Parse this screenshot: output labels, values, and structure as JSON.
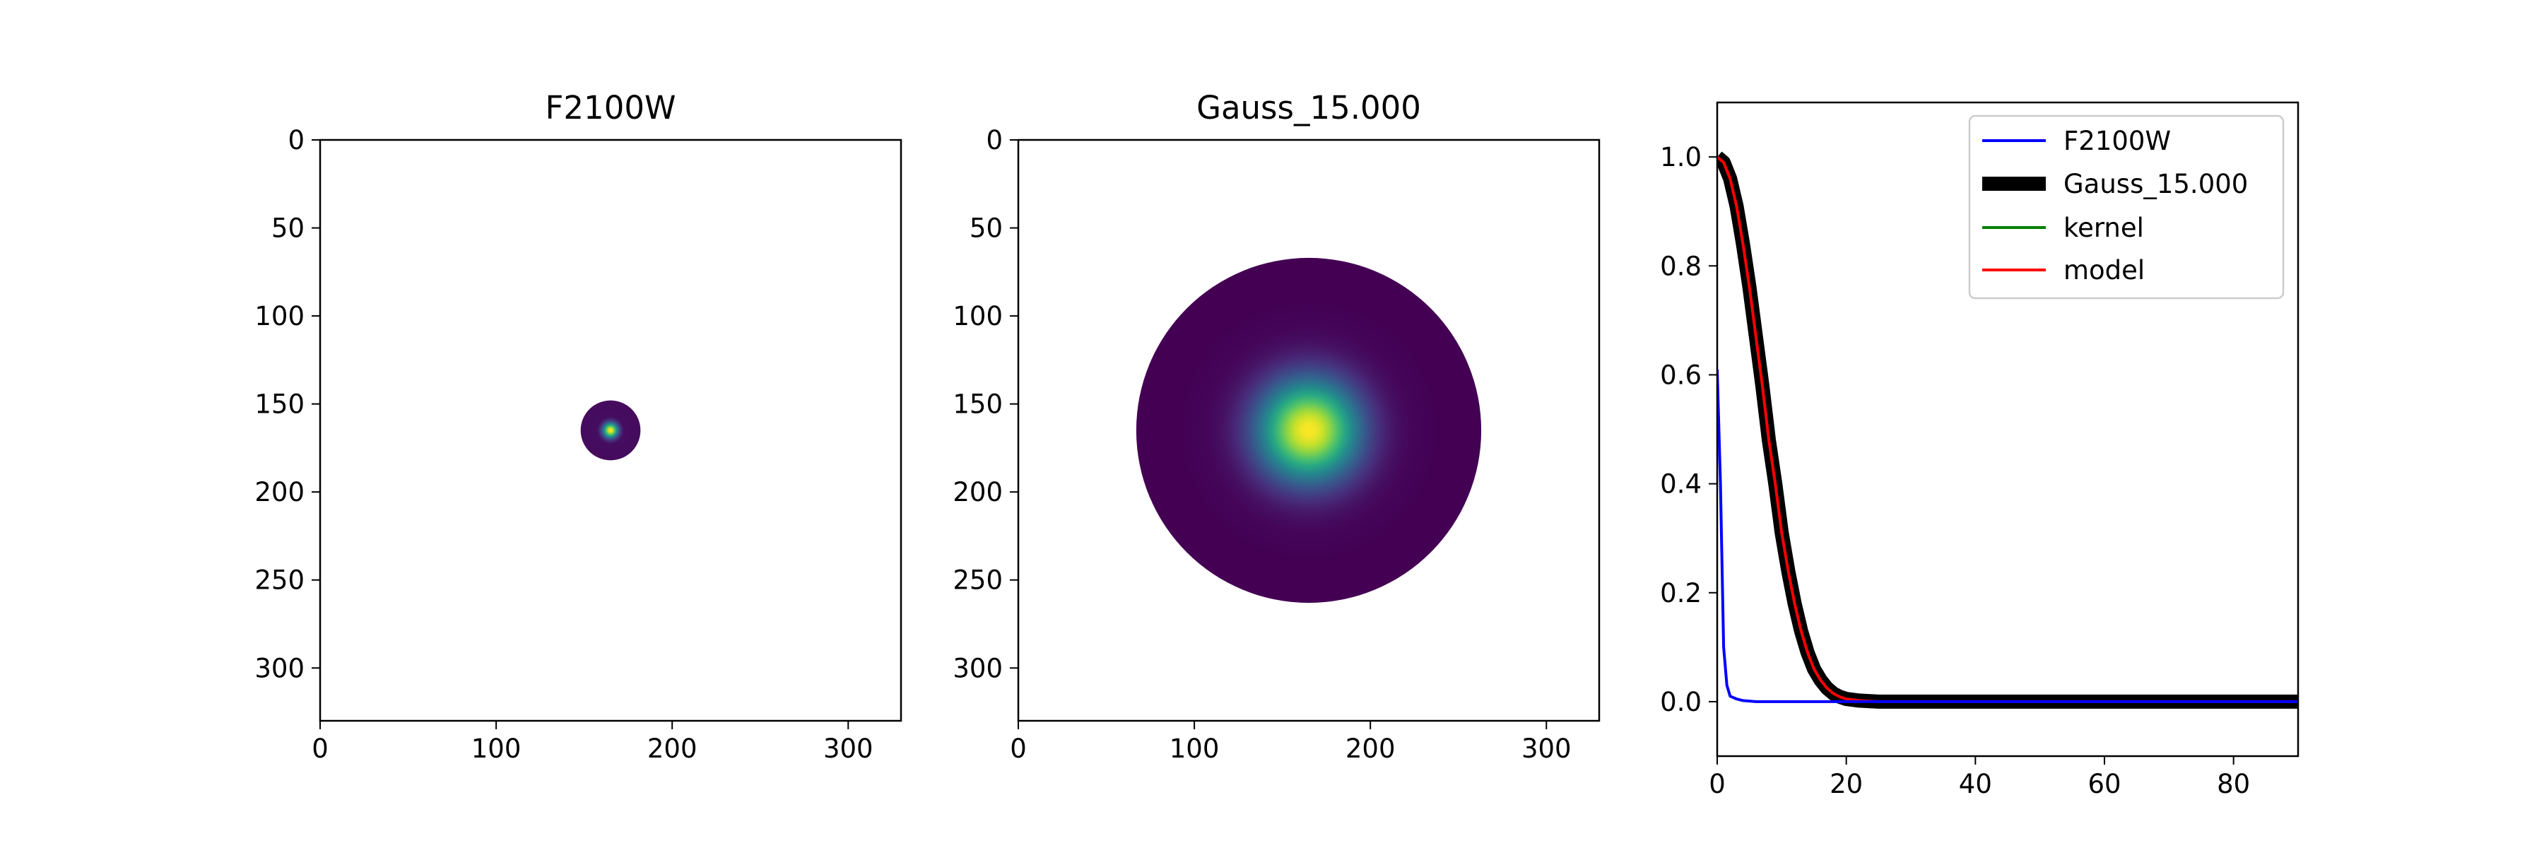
{
  "chart_data": [
    {
      "type": "heatmap",
      "title": "F2100W",
      "colormap": "viridis",
      "background": "#ffffff",
      "xlim": [
        0,
        330
      ],
      "ylim": [
        330,
        0
      ],
      "xticks": [
        0,
        100,
        200,
        300
      ],
      "yticks": [
        0,
        50,
        100,
        150,
        200,
        250,
        300
      ],
      "xtick_labels": [
        "0",
        "100",
        "200",
        "300"
      ],
      "ytick_labels": [
        "0",
        "50",
        "100",
        "150",
        "200",
        "250",
        "300"
      ],
      "source": {
        "center": [
          165,
          165
        ],
        "radius": 17,
        "profile": "peaked",
        "sigma": 3,
        "edge_level": 0.04
      }
    },
    {
      "type": "heatmap",
      "title": "Gauss_15.000",
      "colormap": "viridis",
      "background": "#ffffff",
      "xlim": [
        0,
        330
      ],
      "ylim": [
        330,
        0
      ],
      "xticks": [
        0,
        100,
        200,
        300
      ],
      "yticks": [
        0,
        50,
        100,
        150,
        200,
        250,
        300
      ],
      "xtick_labels": [
        "0",
        "100",
        "200",
        "300"
      ],
      "ytick_labels": [
        "0",
        "50",
        "100",
        "150",
        "200",
        "250",
        "300"
      ],
      "source": {
        "center": [
          165,
          165
        ],
        "radius": 98,
        "profile": "gaussian",
        "sigma": 20,
        "edge_level": 0.0
      }
    },
    {
      "type": "line",
      "xlim": [
        0,
        90
      ],
      "ylim": [
        -0.1,
        1.1
      ],
      "xticks": [
        0,
        20,
        40,
        60,
        80
      ],
      "yticks": [
        0.0,
        0.2,
        0.4,
        0.6,
        0.8,
        1.0
      ],
      "xtick_labels": [
        "0",
        "20",
        "40",
        "60",
        "80"
      ],
      "ytick_labels": [
        "0.0",
        "0.2",
        "0.4",
        "0.6",
        "0.8",
        "1.0"
      ],
      "legend": {
        "placement": "top-right",
        "entries": [
          "F2100W",
          "Gauss_15.000",
          "kernel",
          "model"
        ]
      },
      "series": [
        {
          "name": "F2100W",
          "color": "#0000ff",
          "width": "thin",
          "x": [
            0,
            0.5,
            1,
            1.5,
            2,
            3,
            4,
            6,
            10,
            20,
            30,
            50,
            70,
            90
          ],
          "y": [
            0.61,
            0.4,
            0.1,
            0.03,
            0.01,
            0.005,
            0.002,
            0.0,
            0.0,
            0.0,
            0.0,
            0.0,
            0.0,
            0.0
          ]
        },
        {
          "name": "Gauss_15.000",
          "color": "#000000",
          "width": "thick",
          "x": [
            0,
            1,
            2,
            3,
            4,
            5,
            6,
            7,
            8,
            9,
            10,
            11,
            12,
            13,
            14,
            15,
            16,
            17,
            18,
            19,
            20,
            22,
            25,
            30,
            40,
            50,
            60,
            70,
            80,
            90
          ],
          "y": [
            1.0,
            0.99,
            0.96,
            0.91,
            0.84,
            0.76,
            0.67,
            0.58,
            0.48,
            0.4,
            0.31,
            0.24,
            0.18,
            0.13,
            0.09,
            0.06,
            0.04,
            0.025,
            0.015,
            0.009,
            0.005,
            0.002,
            0.0,
            0.0,
            0.0,
            0.0,
            0.0,
            0.0,
            0.0,
            0.0
          ]
        },
        {
          "name": "kernel",
          "color": "#008000",
          "width": "thin",
          "x": [],
          "y": []
        },
        {
          "name": "model",
          "color": "#ff0000",
          "width": "thin",
          "x": [
            0,
            1,
            2,
            3,
            4,
            5,
            6,
            7,
            8,
            9,
            10,
            11,
            12,
            13,
            14,
            15,
            16,
            17,
            18,
            19,
            20,
            22,
            25,
            30,
            40,
            50,
            60,
            70,
            80,
            90
          ],
          "y": [
            1.0,
            0.99,
            0.96,
            0.91,
            0.84,
            0.76,
            0.67,
            0.58,
            0.48,
            0.4,
            0.31,
            0.24,
            0.18,
            0.13,
            0.09,
            0.06,
            0.04,
            0.025,
            0.015,
            0.009,
            0.005,
            0.002,
            0.0,
            0.0,
            0.0,
            0.0,
            0.0,
            0.0,
            0.0,
            0.0
          ]
        }
      ]
    }
  ]
}
